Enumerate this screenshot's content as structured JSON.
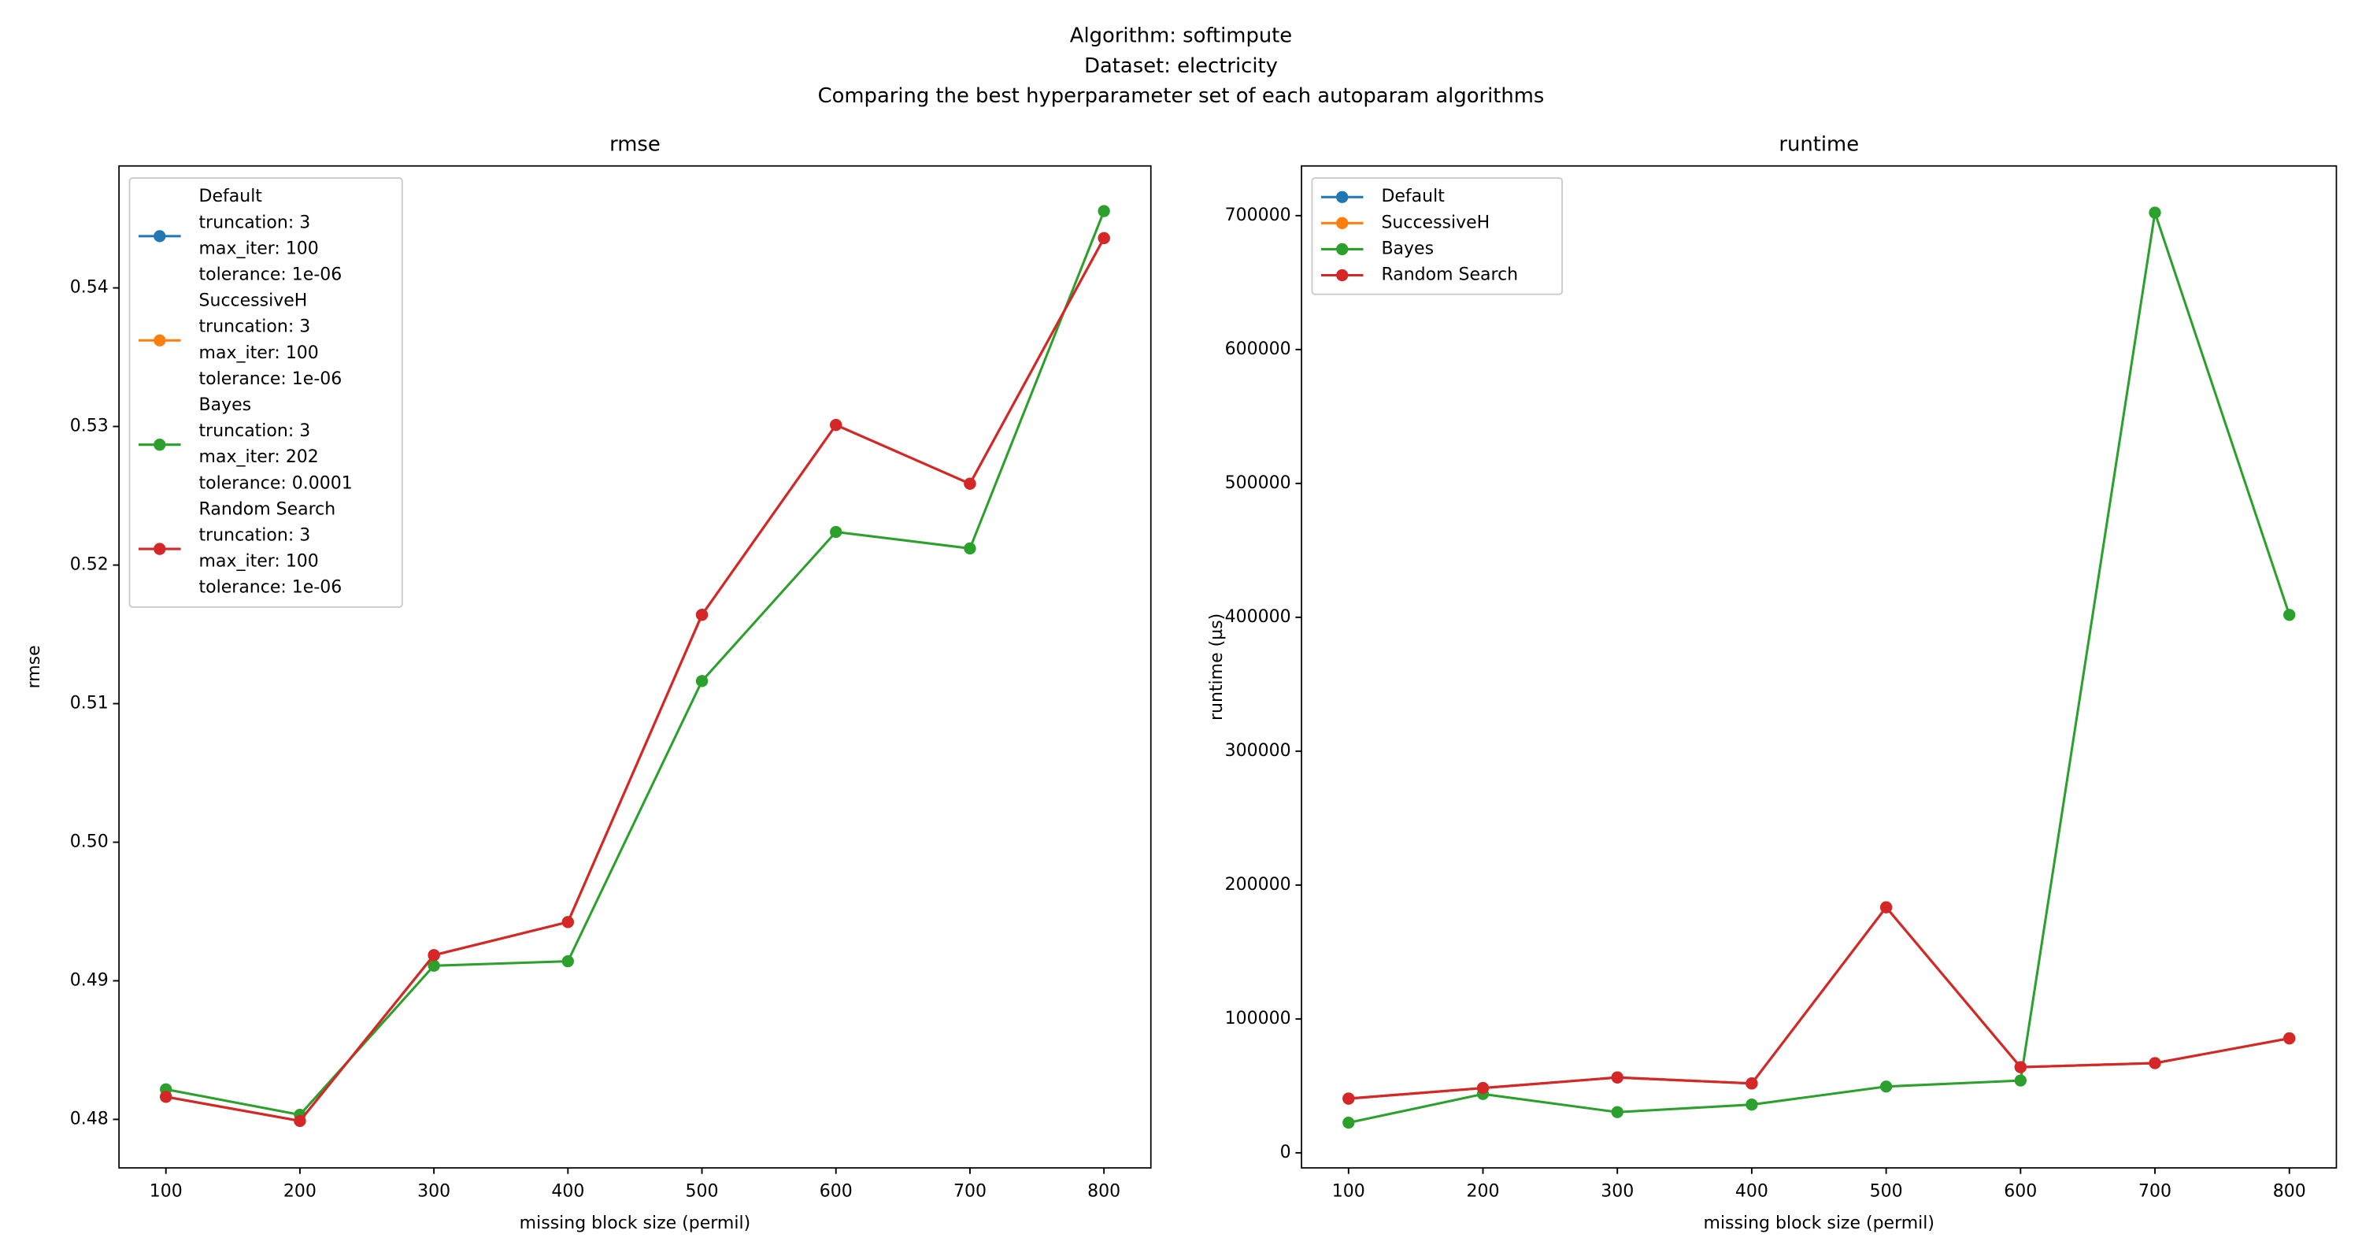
{
  "figure_title": [
    "Algorithm: softimpute",
    "Dataset: electricity",
    "Comparing the best hyperparameter set of each autoparam algorithms"
  ],
  "chart_data": [
    {
      "type": "line",
      "title": "rmse",
      "x_label": "missing block size (permil)",
      "y_label": "rmse",
      "x": [
        100,
        200,
        300,
        400,
        500,
        600,
        700,
        800
      ],
      "xlim": [
        65,
        835
      ],
      "xticks": [
        100,
        200,
        300,
        400,
        500,
        600,
        700,
        800
      ],
      "ylim": [
        0.4765,
        0.5488
      ],
      "yticks": [
        0.48,
        0.49,
        {
          "value": 0.5,
          "label": "0.50"
        },
        0.51,
        0.52,
        0.53,
        0.54
      ],
      "legend": "upper left",
      "series": [
        {
          "name": "Default",
          "details": [
            "truncation: 3",
            "max_iter: 100",
            "tolerance: 1e-06"
          ],
          "color": "#1f77b4",
          "values": [
            0.48163,
            0.47989,
            0.49185,
            0.49424,
            0.51641,
            0.53011,
            0.52587,
            0.54359
          ]
        },
        {
          "name": "SuccessiveH",
          "details": [
            "truncation: 3",
            "max_iter: 100",
            "tolerance: 1e-06"
          ],
          "color": "#ff7f0e",
          "values": [
            0.48163,
            0.47989,
            0.49185,
            0.49424,
            0.51641,
            0.53011,
            0.52587,
            0.54359
          ]
        },
        {
          "name": "Bayes",
          "details": [
            "truncation: 3",
            "max_iter: 202",
            "tolerance: 0.0001"
          ],
          "color": "#2ca02c",
          "values": [
            0.48217,
            0.48033,
            0.49109,
            0.49141,
            0.51163,
            0.52239,
            0.5212,
            0.54554
          ]
        },
        {
          "name": "Random Search",
          "details": [
            "truncation: 3",
            "max_iter: 100",
            "tolerance: 1e-06"
          ],
          "color": "#d62728",
          "values": [
            0.48163,
            0.47989,
            0.49185,
            0.49424,
            0.51641,
            0.53011,
            0.52587,
            0.54359
          ]
        }
      ]
    },
    {
      "type": "line",
      "title": "runtime",
      "x_label": "missing block size (permil)",
      "y_label": "runtime (µs)",
      "x": [
        100,
        200,
        300,
        400,
        500,
        600,
        700,
        800
      ],
      "xlim": [
        65,
        835
      ],
      "xticks": [
        100,
        200,
        300,
        400,
        500,
        600,
        700,
        800
      ],
      "ylim": [
        -11254,
        737120
      ],
      "yticks": [
        0,
        100000,
        200000,
        300000,
        400000,
        500000,
        600000,
        700000
      ],
      "legend": "upper left",
      "series": [
        {
          "name": "Default",
          "color": "#1f77b4",
          "values": [
            40500,
            48400,
            56300,
            51800,
            183400,
            64000,
            67000,
            85500
          ]
        },
        {
          "name": "SuccessiveH",
          "color": "#ff7f0e",
          "values": [
            40500,
            48400,
            56300,
            51800,
            183400,
            64000,
            67000,
            85500
          ]
        },
        {
          "name": "Bayes",
          "color": "#2ca02c",
          "values": [
            22500,
            43900,
            30400,
            36000,
            49500,
            54000,
            702200,
            401800
          ]
        },
        {
          "name": "Random Search",
          "color": "#d62728",
          "values": [
            40500,
            48400,
            56300,
            51800,
            183400,
            64000,
            67000,
            85500
          ]
        }
      ]
    }
  ]
}
